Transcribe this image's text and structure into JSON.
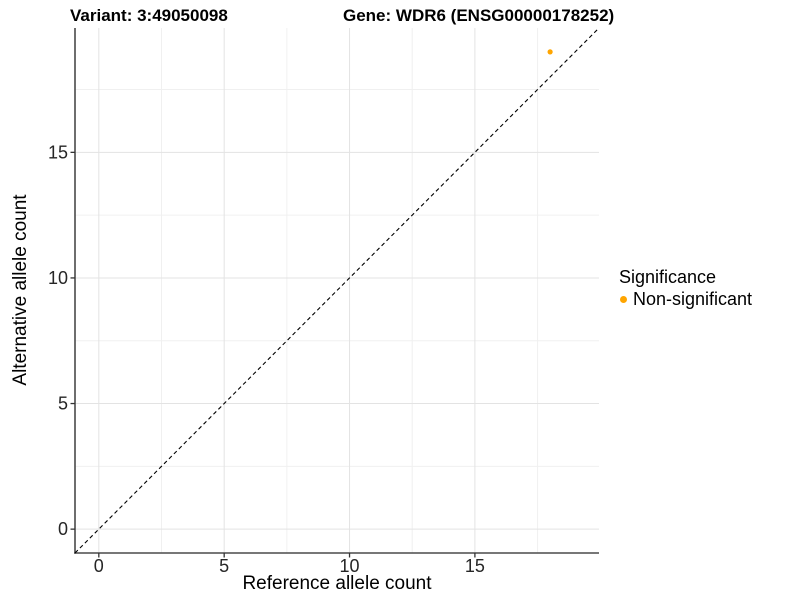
{
  "chart_data": {
    "type": "scatter",
    "title_left": "Variant: 3:49050098",
    "title_right": "Gene: WDR6 (ENSG00000178252)",
    "xlabel": "Reference allele count",
    "ylabel": "Alternative allele count",
    "xlim": [
      -0.95,
      19.95
    ],
    "ylim": [
      -0.95,
      19.95
    ],
    "x_ticks": [
      0,
      5,
      10,
      15
    ],
    "y_ticks": [
      0,
      5,
      10,
      15
    ],
    "x_minor_ticks": [
      2.5,
      7.5,
      12.5,
      17.5
    ],
    "y_minor_ticks": [
      2.5,
      7.5,
      12.5,
      17.5
    ],
    "grid": "major+minor",
    "reference_line": {
      "type": "identity",
      "style": "dashed"
    },
    "series": [
      {
        "name": "Non-significant",
        "color": "#FFA500",
        "points": [
          [
            18,
            19
          ]
        ]
      }
    ],
    "legend": {
      "title": "Significance",
      "position": "right",
      "items": [
        {
          "label": "Non-significant",
          "color": "#FFA500"
        }
      ]
    }
  },
  "colors": {
    "background": "#FFFFFF",
    "grid_major": "#E3E3E3",
    "grid_minor": "#F0F0F0",
    "axis_line": "#4A4A4A",
    "tick_mark": "#333333",
    "tick_text": "#262626",
    "title_text": "#000000",
    "identity_line": "#000000"
  }
}
